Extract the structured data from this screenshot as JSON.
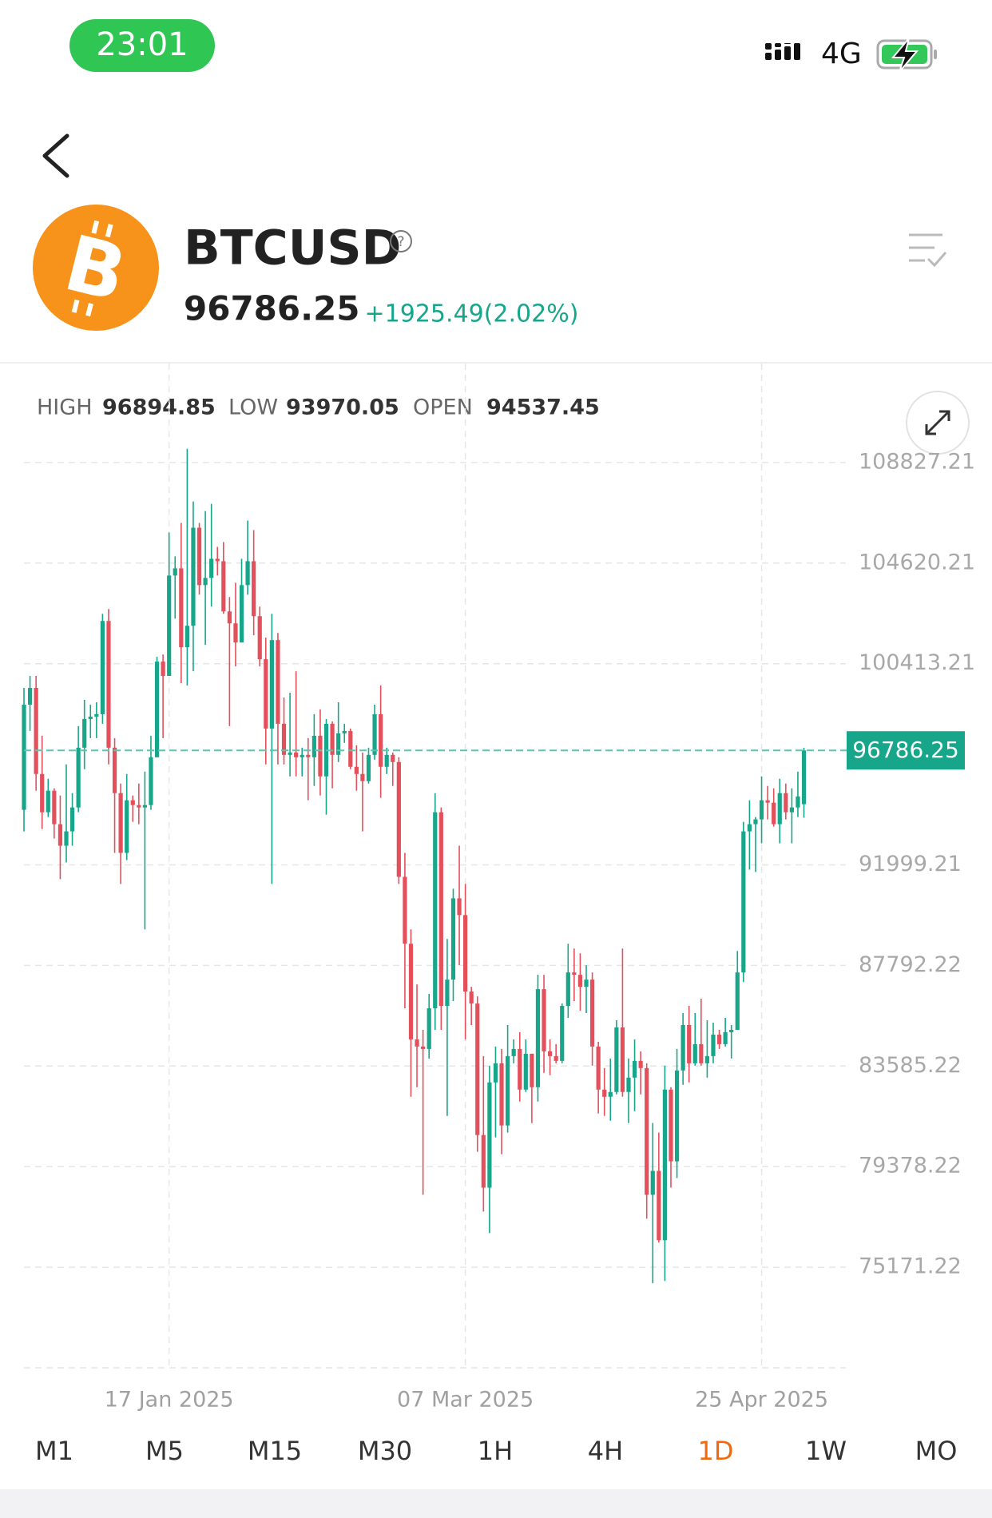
{
  "status_bar": {
    "time": "23:01",
    "network": "4G"
  },
  "header": {
    "symbol": "BTCUSD",
    "change": "+1925.49(2.02%)"
  },
  "stats": {
    "high_label": "HIGH",
    "low_label": "LOW",
    "open_label": "OPEN"
  },
  "chart_data": {
    "type": "candlestick",
    "x": [
      "2024-12-24",
      "2024-12-25",
      "2024-12-26",
      "2024-12-27",
      "2024-12-28",
      "2024-12-29",
      "2024-12-30",
      "2024-12-31",
      "2025-01-01",
      "2025-01-02",
      "2025-01-03",
      "2025-01-04",
      "2025-01-05",
      "2025-01-06",
      "2025-01-07",
      "2025-01-08",
      "2025-01-09",
      "2025-01-10",
      "2025-01-11",
      "2025-01-12",
      "2025-01-13",
      "2025-01-14",
      "2025-01-15",
      "2025-01-16",
      "2025-01-17",
      "2025-01-18",
      "2025-01-19",
      "2025-01-20",
      "2025-01-21",
      "2025-01-22",
      "2025-01-23",
      "2025-01-24",
      "2025-01-25",
      "2025-01-26",
      "2025-01-27",
      "2025-01-28",
      "2025-01-29",
      "2025-01-30",
      "2025-01-31",
      "2025-02-01",
      "2025-02-02",
      "2025-02-03",
      "2025-02-04",
      "2025-02-05",
      "2025-02-06",
      "2025-02-07",
      "2025-02-08",
      "2025-02-09",
      "2025-02-10",
      "2025-02-11",
      "2025-02-12",
      "2025-02-13",
      "2025-02-14",
      "2025-02-15",
      "2025-02-16",
      "2025-02-17",
      "2025-02-18",
      "2025-02-19",
      "2025-02-20",
      "2025-02-21",
      "2025-02-22",
      "2025-02-23",
      "2025-02-24",
      "2025-02-25",
      "2025-02-26",
      "2025-02-27",
      "2025-02-28",
      "2025-03-01",
      "2025-03-02",
      "2025-03-03",
      "2025-03-04",
      "2025-03-05",
      "2025-03-06",
      "2025-03-07",
      "2025-03-08",
      "2025-03-09",
      "2025-03-10",
      "2025-03-11",
      "2025-03-12",
      "2025-03-13",
      "2025-03-14",
      "2025-03-15",
      "2025-03-16",
      "2025-03-17",
      "2025-03-18",
      "2025-03-19",
      "2025-03-20",
      "2025-03-21",
      "2025-03-22",
      "2025-03-23",
      "2025-03-24",
      "2025-03-25",
      "2025-03-26",
      "2025-03-27",
      "2025-03-28",
      "2025-03-29",
      "2025-03-30",
      "2025-03-31",
      "2025-04-01",
      "2025-04-02",
      "2025-04-03",
      "2025-04-04",
      "2025-04-05",
      "2025-04-06",
      "2025-04-07",
      "2025-04-08",
      "2025-04-09",
      "2025-04-10",
      "2025-04-11",
      "2025-04-12",
      "2025-04-13",
      "2025-04-14",
      "2025-04-15",
      "2025-04-16",
      "2025-04-17",
      "2025-04-18",
      "2025-04-19",
      "2025-04-20",
      "2025-04-21",
      "2025-04-22",
      "2025-04-23",
      "2025-04-24",
      "2025-04-25",
      "2025-04-26",
      "2025-04-27",
      "2025-04-28",
      "2025-04-29",
      "2025-04-30",
      "2025-05-01",
      "2025-05-02"
    ],
    "candles": [
      [
        94300,
        99400,
        93400,
        98700
      ],
      [
        98700,
        99900,
        97600,
        99400
      ],
      [
        99400,
        99900,
        95100,
        95800
      ],
      [
        95800,
        97400,
        93500,
        94200
      ],
      [
        94200,
        95600,
        94000,
        95100
      ],
      [
        95100,
        95200,
        93100,
        93700
      ],
      [
        93700,
        94900,
        91400,
        92800
      ],
      [
        92800,
        96200,
        92100,
        93400
      ],
      [
        93400,
        95000,
        92800,
        94400
      ],
      [
        94400,
        97800,
        94200,
        96900
      ],
      [
        96900,
        98900,
        96000,
        98100
      ],
      [
        98100,
        98700,
        97300,
        98200
      ],
      [
        98200,
        98800,
        97300,
        98300
      ],
      [
        98300,
        102500,
        97900,
        102200
      ],
      [
        102200,
        102700,
        96200,
        96900
      ],
      [
        96900,
        97300,
        92500,
        95000
      ],
      [
        95000,
        95400,
        91200,
        92500
      ],
      [
        92500,
        95800,
        92200,
        94700
      ],
      [
        94700,
        94900,
        93800,
        94500
      ],
      [
        94500,
        95400,
        93700,
        94400
      ],
      [
        94400,
        95900,
        89300,
        94500
      ],
      [
        94500,
        97400,
        94300,
        96500
      ],
      [
        96500,
        100700,
        96500,
        100500
      ],
      [
        100500,
        100800,
        97300,
        99900
      ],
      [
        99900,
        105900,
        99900,
        104100
      ],
      [
        104100,
        104900,
        102300,
        104400
      ],
      [
        104400,
        106300,
        99600,
        101100
      ],
      [
        101100,
        109400,
        99500,
        102000
      ],
      [
        102000,
        107200,
        100100,
        106100
      ],
      [
        106100,
        106300,
        103300,
        103700
      ],
      [
        103700,
        106800,
        101200,
        104000
      ],
      [
        104000,
        107100,
        102800,
        104800
      ],
      [
        104800,
        105300,
        104100,
        104700
      ],
      [
        104700,
        105500,
        102500,
        102600
      ],
      [
        102600,
        103200,
        97800,
        102100
      ],
      [
        102100,
        103800,
        100300,
        101300
      ],
      [
        101300,
        104800,
        101300,
        103700
      ],
      [
        103700,
        106400,
        103300,
        104700
      ],
      [
        104700,
        106000,
        101600,
        102400
      ],
      [
        102400,
        102800,
        100300,
        100600
      ],
      [
        100600,
        101500,
        96200,
        97700
      ],
      [
        97700,
        102500,
        91200,
        101400
      ],
      [
        101400,
        101700,
        96200,
        97900
      ],
      [
        97900,
        99000,
        96200,
        96600
      ],
      [
        96600,
        99200,
        95700,
        96700
      ],
      [
        96700,
        100100,
        95700,
        96500
      ],
      [
        96500,
        96900,
        95700,
        96600
      ],
      [
        96600,
        97300,
        94700,
        96500
      ],
      [
        96500,
        98300,
        95300,
        97400
      ],
      [
        97400,
        98500,
        94900,
        95700
      ],
      [
        95700,
        98100,
        94100,
        97900
      ],
      [
        97900,
        98000,
        95200,
        96600
      ],
      [
        96600,
        98800,
        96300,
        97500
      ],
      [
        97500,
        97900,
        97100,
        97600
      ],
      [
        97600,
        97700,
        96000,
        96100
      ],
      [
        96100,
        97000,
        95100,
        95800
      ],
      [
        95800,
        96700,
        93400,
        95500
      ],
      [
        95500,
        96900,
        95400,
        96600
      ],
      [
        96600,
        98700,
        96400,
        98300
      ],
      [
        98300,
        99500,
        94800,
        96100
      ],
      [
        96100,
        96900,
        95800,
        96600
      ],
      [
        96600,
        96700,
        95300,
        96300
      ],
      [
        96300,
        96500,
        91200,
        91500
      ],
      [
        91500,
        92500,
        86000,
        88700
      ],
      [
        88700,
        89300,
        82300,
        84700
      ],
      [
        84700,
        87000,
        82700,
        84400
      ],
      [
        84400,
        85100,
        78200,
        84300
      ],
      [
        84300,
        86600,
        83900,
        86000
      ],
      [
        86000,
        95000,
        85100,
        94200
      ],
      [
        94200,
        94400,
        85100,
        86100
      ],
      [
        86100,
        88900,
        81500,
        87200
      ],
      [
        87200,
        91000,
        86300,
        90600
      ],
      [
        90600,
        92800,
        87800,
        89900
      ],
      [
        89900,
        91200,
        84700,
        86700
      ],
      [
        86700,
        86900,
        85300,
        86200
      ],
      [
        86200,
        86500,
        80000,
        80700
      ],
      [
        80700,
        84000,
        77500,
        78500
      ],
      [
        78500,
        83600,
        76600,
        82900
      ],
      [
        82900,
        84400,
        80600,
        83700
      ],
      [
        83700,
        84300,
        79900,
        81100
      ],
      [
        81100,
        85300,
        80800,
        84000
      ],
      [
        84000,
        84700,
        83700,
        84300
      ],
      [
        84300,
        85000,
        82100,
        82600
      ],
      [
        82600,
        84700,
        82500,
        84100
      ],
      [
        84100,
        84100,
        81200,
        82700
      ],
      [
        82700,
        87400,
        82100,
        86800
      ],
      [
        86800,
        87400,
        83300,
        84200
      ],
      [
        84200,
        84700,
        83200,
        84000
      ],
      [
        84000,
        84500,
        83700,
        83800
      ],
      [
        83800,
        86200,
        83700,
        86100
      ],
      [
        86100,
        88700,
        85600,
        87500
      ],
      [
        87500,
        88500,
        86300,
        87400
      ],
      [
        87400,
        88300,
        85900,
        86900
      ],
      [
        86900,
        87800,
        85800,
        87200
      ],
      [
        87200,
        87500,
        83600,
        84400
      ],
      [
        84400,
        84600,
        81600,
        82600
      ],
      [
        82600,
        83500,
        81500,
        82300
      ],
      [
        82300,
        83900,
        81300,
        82500
      ],
      [
        82500,
        85500,
        82400,
        85200
      ],
      [
        85200,
        88500,
        82300,
        82500
      ],
      [
        82500,
        83900,
        81200,
        83100
      ],
      [
        83100,
        84700,
        81700,
        83800
      ],
      [
        83800,
        84200,
        82400,
        83500
      ],
      [
        83500,
        83700,
        77200,
        78200
      ],
      [
        78200,
        81200,
        74500,
        79200
      ],
      [
        79200,
        80800,
        76200,
        76300
      ],
      [
        76300,
        83600,
        74600,
        82600
      ],
      [
        82600,
        82700,
        78500,
        79600
      ],
      [
        79600,
        84300,
        78900,
        83400
      ],
      [
        83400,
        85800,
        82800,
        85300
      ],
      [
        85300,
        86100,
        82900,
        83700
      ],
      [
        83700,
        85800,
        83600,
        84500
      ],
      [
        84500,
        86400,
        83600,
        83700
      ],
      [
        83700,
        85500,
        83100,
        84000
      ],
      [
        84000,
        85400,
        83700,
        84900
      ],
      [
        84900,
        85100,
        84300,
        84500
      ],
      [
        84500,
        85600,
        84400,
        85000
      ],
      [
        85000,
        85300,
        83900,
        85100
      ],
      [
        85100,
        88400,
        85100,
        87500
      ],
      [
        87500,
        93800,
        87100,
        93400
      ],
      [
        93400,
        94700,
        91800,
        93700
      ],
      [
        93700,
        94000,
        91700,
        93900
      ],
      [
        93900,
        95700,
        92900,
        94700
      ],
      [
        94700,
        95300,
        93900,
        94600
      ],
      [
        94600,
        95200,
        93600,
        93700
      ],
      [
        93700,
        95600,
        92900,
        95000
      ],
      [
        95000,
        95400,
        93900,
        94200
      ],
      [
        94200,
        95200,
        92900,
        94400
      ],
      [
        94400,
        95900,
        94000,
        94860.76
      ],
      [
        94537.45,
        96894.85,
        93970.05,
        96786.25
      ]
    ],
    "up_color": "#17a68a",
    "down_color": "#e3505c",
    "ylim": [
      70964.22,
      113034.21
    ],
    "yticks": [
      75171.22,
      79378.22,
      83585.22,
      87792.22,
      91999.21,
      100413.21,
      104620.21,
      108827.21
    ],
    "xticks": [
      {
        "value": "2025-01-17",
        "label": "17 Jan 2025"
      },
      {
        "value": "2025-03-07",
        "label": "07 Mar 2025"
      },
      {
        "value": "2025-04-25",
        "label": "25 Apr 2025"
      }
    ],
    "grid": true,
    "last_price_line": true
  },
  "timeframes": [
    "M1",
    "M5",
    "M15",
    "M30",
    "1H",
    "4H",
    "1D",
    "1W",
    "MO"
  ],
  "selected_timeframe": 6
}
